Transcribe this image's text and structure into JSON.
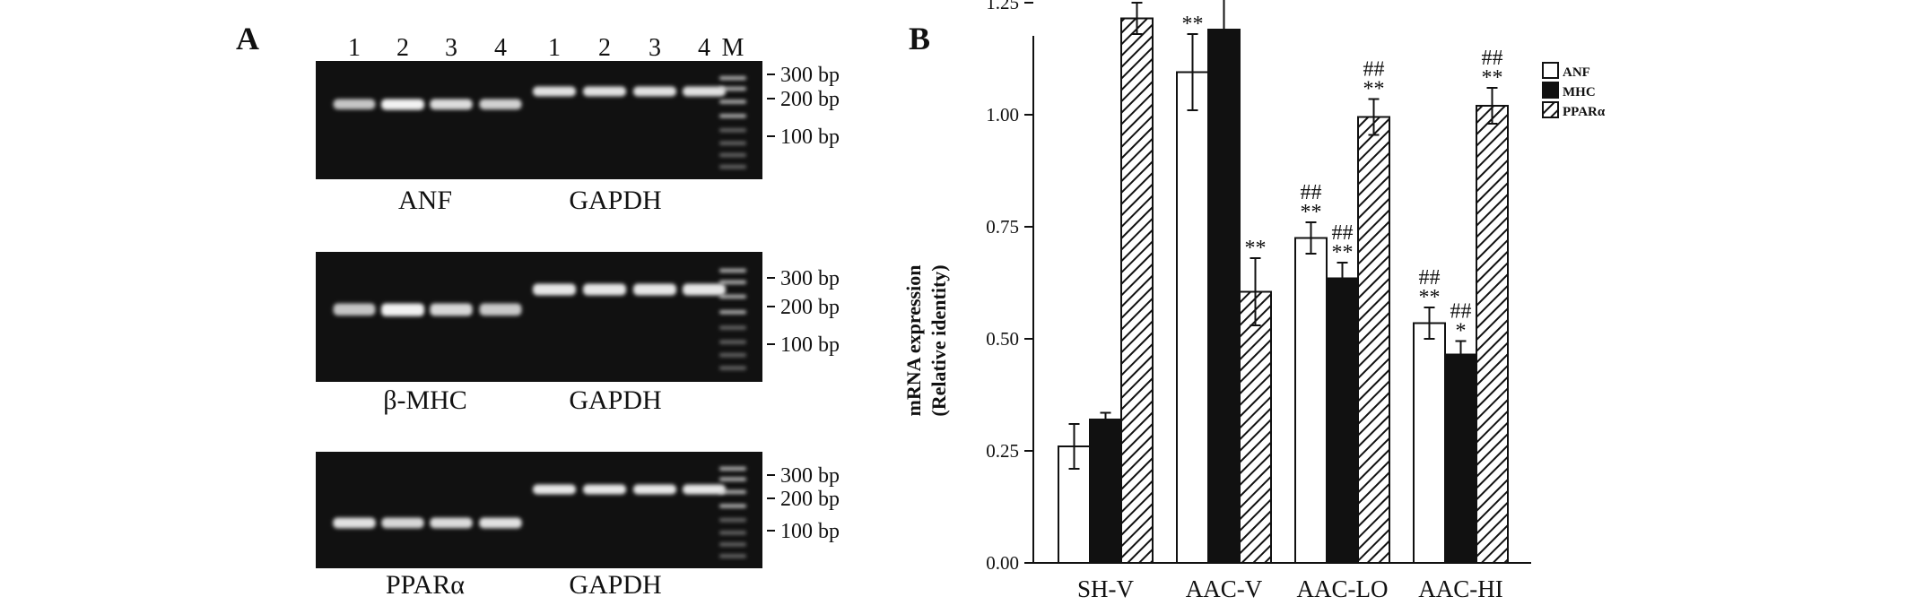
{
  "panel_a": {
    "panel_label": "A",
    "lane_labels": [
      "1",
      "2",
      "3",
      "4",
      "1",
      "2",
      "3",
      "4",
      "M"
    ],
    "marker_colors": {
      "gel_background": "#111111",
      "band": "#f2f2f2"
    },
    "gels": [
      {
        "target_label": "ANF",
        "reference_label": "GAPDH",
        "marker_labels": [
          "300 bp",
          "200 bp",
          "100 bp"
        ],
        "target_intensity": [
          0.8,
          1.0,
          0.9,
          0.85
        ],
        "reference_intensity": [
          0.92,
          0.92,
          0.92,
          0.92
        ]
      },
      {
        "target_label": "β-MHC",
        "reference_label": "GAPDH",
        "marker_labels": [
          "300 bp",
          "200 bp",
          "100 bp"
        ],
        "target_intensity": [
          0.8,
          1.0,
          0.88,
          0.82
        ],
        "reference_intensity": [
          0.95,
          0.95,
          0.95,
          0.95
        ]
      },
      {
        "target_label": "PPARα",
        "reference_label": "GAPDH",
        "marker_labels": [
          "300 bp",
          "200 bp",
          "100 bp"
        ],
        "target_intensity": [
          0.92,
          0.88,
          0.9,
          0.92
        ],
        "reference_intensity": [
          0.95,
          0.95,
          0.95,
          0.95
        ]
      }
    ]
  },
  "chart_data": {
    "panel_label": "B",
    "type": "bar",
    "ylabel_line1": "mRNA expression",
    "ylabel_line2": "(Relative identity)",
    "ylim": [
      0,
      1.45
    ],
    "yticks": [
      "0.00",
      "0.25",
      "0.50",
      "0.75",
      "1.00",
      "1.25"
    ],
    "ytick_values": [
      0,
      0.25,
      0.5,
      0.75,
      1.0,
      1.25
    ],
    "categories": [
      "SH-V",
      "AAC-V",
      "AAC-LO",
      "AAC-HI"
    ],
    "legend_position": "top-right",
    "grid": false,
    "series": [
      {
        "name": "ANF",
        "style": "open",
        "values": [
          0.26,
          1.095,
          0.725,
          0.535
        ],
        "errors": [
          0.05,
          0.085,
          0.035,
          0.035
        ],
        "annotations": [
          [
            ""
          ],
          [
            "**"
          ],
          [
            "**",
            "##"
          ],
          [
            "**",
            "##"
          ]
        ]
      },
      {
        "name": "MHC",
        "style": "solid",
        "values": [
          0.32,
          1.19,
          0.635,
          0.465
        ],
        "errors": [
          0.015,
          0.07,
          0.035,
          0.03
        ],
        "annotations": [
          [
            ""
          ],
          [
            "**"
          ],
          [
            "**",
            "##"
          ],
          [
            "*",
            "##"
          ]
        ]
      },
      {
        "name": "PPARα",
        "style": "hatched",
        "values": [
          1.215,
          0.605,
          0.995,
          1.02
        ],
        "errors": [
          0.035,
          0.075,
          0.04,
          0.04
        ],
        "annotations": [
          [
            ""
          ],
          [
            "**"
          ],
          [
            "**",
            "##"
          ],
          [
            "**",
            "##"
          ]
        ]
      }
    ]
  }
}
